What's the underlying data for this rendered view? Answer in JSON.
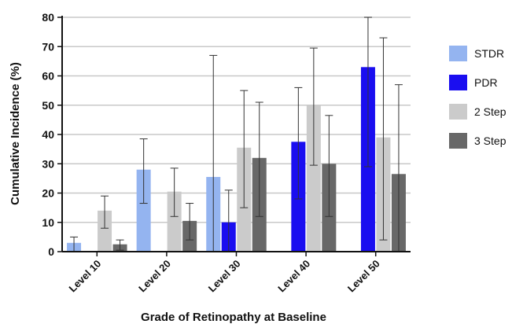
{
  "chart_data": {
    "type": "bar",
    "xlabel": "Grade of Retinopathy at Baseline",
    "ylabel": "Cumulative Incidence (%)",
    "ylim": [
      0,
      80
    ],
    "yticks": [
      0,
      10,
      20,
      30,
      40,
      50,
      60,
      70,
      80
    ],
    "grid": "horizontal",
    "legend_position": "right",
    "categories": [
      "Level 10",
      "Level 20",
      "Level 30",
      "Level 40",
      "Level 50"
    ],
    "series": [
      {
        "name": "STDR",
        "color": "#94b4f0",
        "values": [
          3,
          28,
          25.5,
          null,
          null
        ],
        "error_low": [
          0,
          16.5,
          0,
          null,
          null
        ],
        "error_high": [
          5,
          38.5,
          67,
          null,
          null
        ]
      },
      {
        "name": "PDR",
        "color": "#1a0ef0",
        "values": [
          null,
          null,
          10,
          37.5,
          63
        ],
        "error_low": [
          null,
          null,
          0,
          18,
          29
        ],
        "error_high": [
          null,
          null,
          21,
          56,
          80
        ]
      },
      {
        "name": "2 Step",
        "color": "#cbcbcb",
        "values": [
          14,
          20.5,
          35.5,
          50,
          39
        ],
        "error_low": [
          8,
          12,
          15,
          29.5,
          4
        ],
        "error_high": [
          19,
          28.5,
          55,
          69.5,
          73
        ]
      },
      {
        "name": "3 Step",
        "color": "#686868",
        "values": [
          2.5,
          10.5,
          32,
          30,
          26.5
        ],
        "error_low": [
          0.5,
          4,
          12,
          12,
          0
        ],
        "error_high": [
          4,
          16.5,
          51,
          46.5,
          57
        ]
      }
    ]
  }
}
